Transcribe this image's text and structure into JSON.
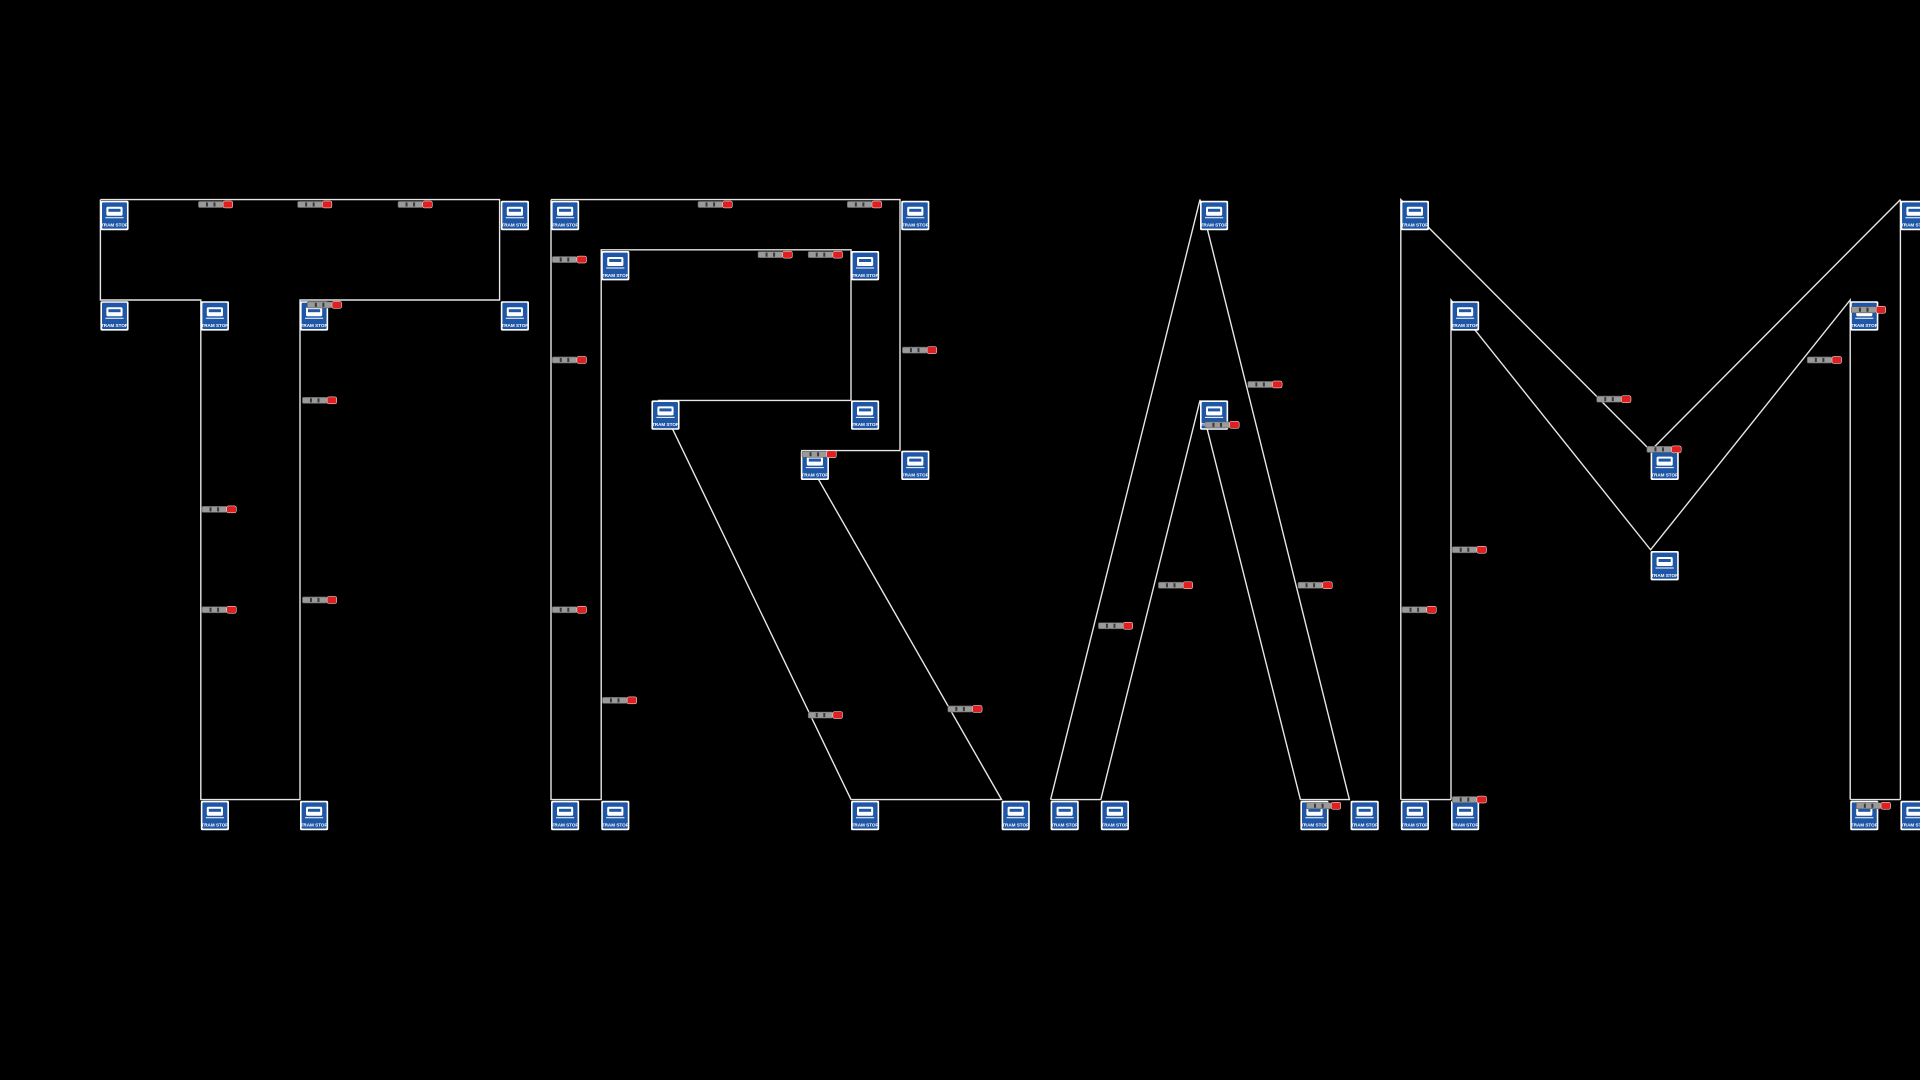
{
  "colors": {
    "background": "#000000",
    "track": "#e6e6e6",
    "stop_blue": "#1f57a6",
    "stop_white": "#ffffff",
    "tram_body": "#9a9a9a",
    "tram_nose": "#e02020"
  },
  "stop": {
    "label": "TRAM STOP",
    "icon": "tram-stop-sign-icon"
  },
  "tram": {
    "icon": "tram-vehicle-icon"
  }
}
